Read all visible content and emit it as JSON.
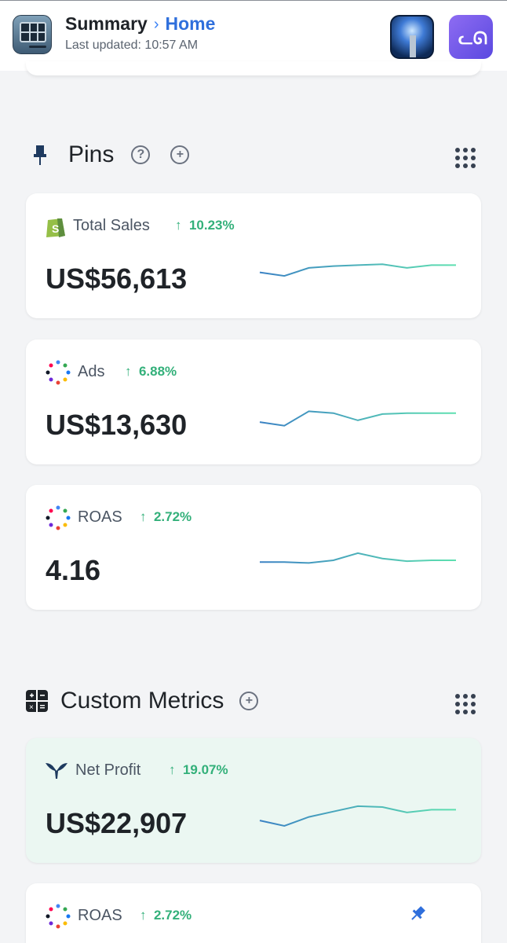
{
  "header": {
    "title": "Summary",
    "breadcrumb": "Home",
    "last_updated": "Last updated: 10:57 AM",
    "app_icon": "dashboard-app-icon",
    "right_icons": [
      "beacon-app-icon",
      "whale-app-icon"
    ]
  },
  "sections": {
    "pins": {
      "title": "Pins",
      "icon": "pin-icon",
      "help_icon": "question-circle-icon",
      "add_icon": "plus-circle-icon",
      "menu_icon": "grid-dots-icon"
    },
    "custom_metrics": {
      "title": "Custom Metrics",
      "icon": "calculator-icon",
      "add_icon": "plus-circle-icon",
      "menu_icon": "grid-dots-icon"
    }
  },
  "pins": [
    {
      "name": "Total Sales",
      "delta": "10.23%",
      "value": "US$56,613",
      "logo": "shopify-icon",
      "spark": [
        62,
        58,
        67,
        69,
        70,
        71,
        67,
        70,
        70
      ]
    },
    {
      "name": "Ads",
      "delta": "6.88%",
      "value": "US$13,630",
      "logo": "multicolor-dots-icon",
      "spark": [
        58,
        54,
        70,
        68,
        60,
        67,
        68,
        68,
        68
      ]
    },
    {
      "name": "ROAS",
      "delta": "2.72%",
      "value": "4.16",
      "logo": "multicolor-dots-icon",
      "spark": [
        64,
        64,
        63,
        66,
        74,
        68,
        65,
        66,
        66
      ]
    }
  ],
  "custom_metrics": [
    {
      "name": "Net Profit",
      "delta": "19.07%",
      "value": "US$22,907",
      "logo": "triple-whale-icon",
      "spark": [
        58,
        52,
        62,
        68,
        74,
        73,
        67,
        70,
        70
      ]
    },
    {
      "name": "ROAS",
      "delta": "2.72%",
      "value": "",
      "logo": "multicolor-dots-icon",
      "pinned_icon": "pin-filled-icon"
    }
  ],
  "colors": {
    "accent": "#2f6fdc",
    "positive": "#33b07a",
    "spark_start": "#3b82c4",
    "spark_end": "#5ee0b0",
    "card_tint": "#ebf7f2"
  }
}
